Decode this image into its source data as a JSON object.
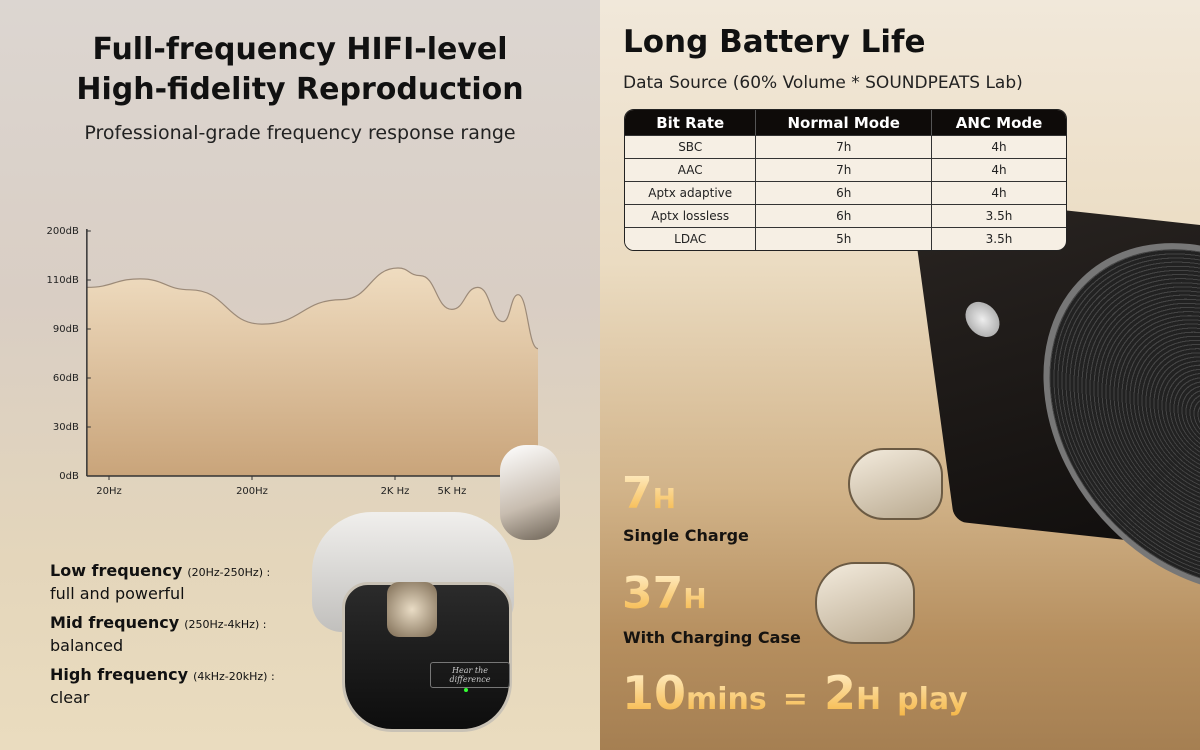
{
  "left": {
    "title_line1": "Full-frequency HIFI-level",
    "title_line2": "High-fidelity Reproduction",
    "subtitle": "Professional-grade frequency response range",
    "bands": [
      {
        "name": "Low frequency",
        "range": "(20Hz-250Hz) :",
        "desc": "full and powerful"
      },
      {
        "name": "Mid frequency",
        "range": "(250Hz-4kHz) :",
        "desc": "balanced"
      },
      {
        "name": "High frequency",
        "range": "(4kHz-20kHz) :",
        "desc": "clear"
      }
    ],
    "case_engraving": "Hear the difference"
  },
  "chart_data": {
    "type": "area",
    "title": "",
    "xlabel": "",
    "ylabel": "",
    "x_scale": "log",
    "x_ticks": [
      {
        "value": 20,
        "label": "20Hz"
      },
      {
        "value": 200,
        "label": "200Hz"
      },
      {
        "value": 2000,
        "label": "2K Hz"
      },
      {
        "value": 5000,
        "label": "5K Hz"
      }
    ],
    "y_ticks": [
      {
        "value": 0,
        "label": "0dB"
      },
      {
        "value": 30,
        "label": "30dB"
      },
      {
        "value": 60,
        "label": "60dB"
      },
      {
        "value": 90,
        "label": "90dB"
      },
      {
        "value": 110,
        "label": "110dB"
      },
      {
        "value": 200,
        "label": "200dB"
      }
    ],
    "y_scale": "evenly spaced tick labels (non-linear)",
    "xlim": [
      14,
      21000
    ],
    "ylim": [
      0,
      200
    ],
    "grid": false,
    "series": [
      {
        "x": [
          14,
          33,
          74,
          235,
          850,
          2100,
          3000,
          5000,
          7600,
          11400,
          14500,
          20000
        ],
        "y": [
          107,
          112,
          106,
          92,
          102,
          132,
          118,
          98,
          107,
          93,
          104,
          78
        ]
      }
    ],
    "colors": {
      "fill_top": "#efdcc0",
      "fill_bottom": "#c9a47a",
      "line": "#9c8a78"
    }
  },
  "right": {
    "title": "Long Battery Life",
    "source": "Data Source (60% Volume * SOUNDPEATS Lab)",
    "table": {
      "headers": [
        "Bit Rate",
        "Normal Mode",
        "ANC Mode"
      ],
      "rows": [
        [
          "SBC",
          "7h",
          "4h"
        ],
        [
          "AAC",
          "7h",
          "4h"
        ],
        [
          "Aptx adaptive",
          "6h",
          "4h"
        ],
        [
          "Aptx lossless",
          "6h",
          "3.5h"
        ],
        [
          "LDAC",
          "5h",
          "3.5h"
        ]
      ]
    },
    "single": {
      "num": "7",
      "unit": "H",
      "label": "Single Charge"
    },
    "case": {
      "num": "37",
      "unit": "H",
      "label": "With Charging Case"
    },
    "fast": {
      "num1": "10",
      "unit1": "mins",
      "eq": "=",
      "num2": "2",
      "unit2": "H",
      "tail": "play"
    }
  }
}
